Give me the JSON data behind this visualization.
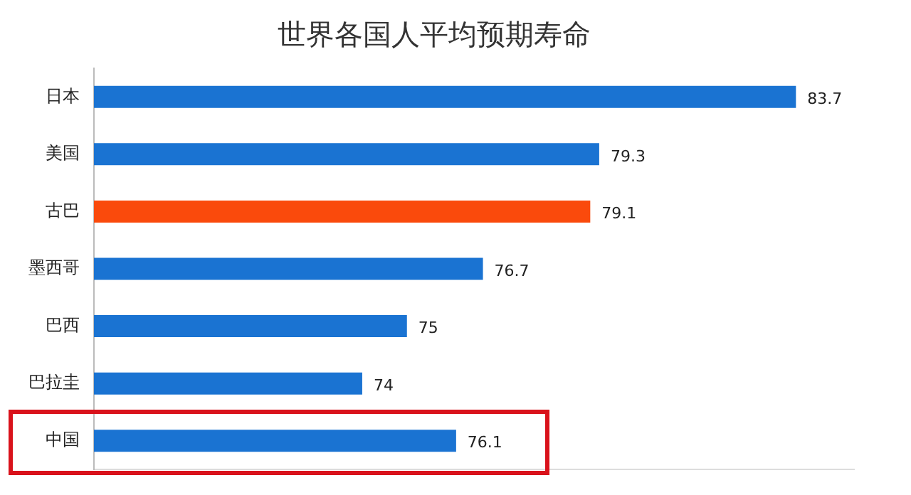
{
  "chart_data": {
    "type": "bar",
    "orientation": "horizontal",
    "title": "世界各国人平均预期寿命",
    "categories": [
      "日本",
      "美国",
      "古巴",
      "墨西哥",
      "巴西",
      "巴拉圭",
      "中国"
    ],
    "values": [
      83.7,
      79.3,
      79.1,
      76.7,
      75,
      74,
      76.1
    ],
    "colors": [
      "#1a73d2",
      "#1a73d2",
      "#fa4a0c",
      "#1a73d2",
      "#1a73d2",
      "#1a73d2",
      "#1a73d2"
    ],
    "xlim": [
      68,
      85
    ],
    "tick_labels": "y",
    "grid": false,
    "legend": false,
    "data_labels": true
  }
}
